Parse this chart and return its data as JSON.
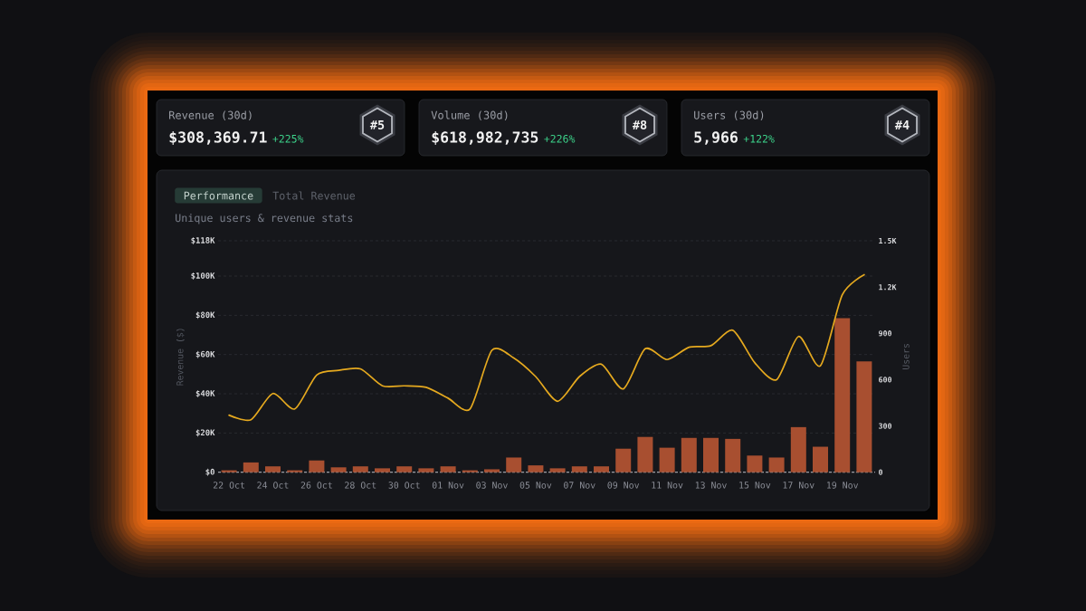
{
  "chart_data": {
    "type": "bar",
    "title": "Unique users & revenue stats",
    "ylabel": "Revenue ($)",
    "y2label": "Users",
    "categories": [
      "22 Oct",
      null,
      "24 Oct",
      null,
      "26 Oct",
      null,
      "28 Oct",
      null,
      "30 Oct",
      null,
      "01 Nov",
      null,
      "03 Nov",
      null,
      "05 Nov",
      null,
      "07 Nov",
      null,
      "09 Nov",
      null,
      "11 Nov",
      null,
      "13 Nov",
      null,
      "15 Nov",
      null,
      "17 Nov",
      null,
      "19 Nov",
      null
    ],
    "series": [
      {
        "color": "#a84f30",
        "values": [
          1000,
          5000,
          3000,
          1000,
          6000,
          2500,
          3000,
          2000,
          3000,
          2000,
          3000,
          1000,
          1500,
          7500,
          3500,
          2000,
          3000,
          3000,
          12000,
          18000,
          12500,
          17500,
          17500,
          17000,
          8500,
          7500,
          23000,
          13000,
          78500,
          56500
        ]
      },
      {
        "type": "line",
        "axis": "y2",
        "color": "#e5a91f",
        "values": [
          370,
          340,
          510,
          410,
          630,
          660,
          670,
          560,
          560,
          550,
          480,
          410,
          790,
          740,
          620,
          460,
          620,
          700,
          540,
          800,
          730,
          810,
          820,
          920,
          710,
          600,
          880,
          690,
          1150,
          1280
        ]
      }
    ],
    "ylim": [
      0,
      118000
    ],
    "yticks": [
      {
        "value": 0,
        "label": "$0"
      },
      {
        "value": 20000,
        "label": "$20K"
      },
      {
        "value": 40000,
        "label": "$40K"
      },
      {
        "value": 60000,
        "label": "$60K"
      },
      {
        "value": 80000,
        "label": "$80K"
      },
      {
        "value": 100000,
        "label": "$100K"
      },
      {
        "value": 118000,
        "label": "$118K"
      }
    ],
    "y2lim": [
      0,
      1500
    ],
    "y2ticks": [
      0,
      300,
      600,
      900,
      {
        "value": 1200,
        "label": "1.2K"
      },
      {
        "value": 1500,
        "label": "1.5K"
      }
    ],
    "grid": "y",
    "annotations": [
      "Revenue (30d)",
      "$308,369.71",
      "+225%",
      "#5",
      "Volume (30d)",
      "$618,982,735",
      "+226%",
      "#8",
      "Users (30d)",
      "5,966",
      "+122%",
      "#4",
      "Performance",
      "Total Revenue"
    ]
  }
}
